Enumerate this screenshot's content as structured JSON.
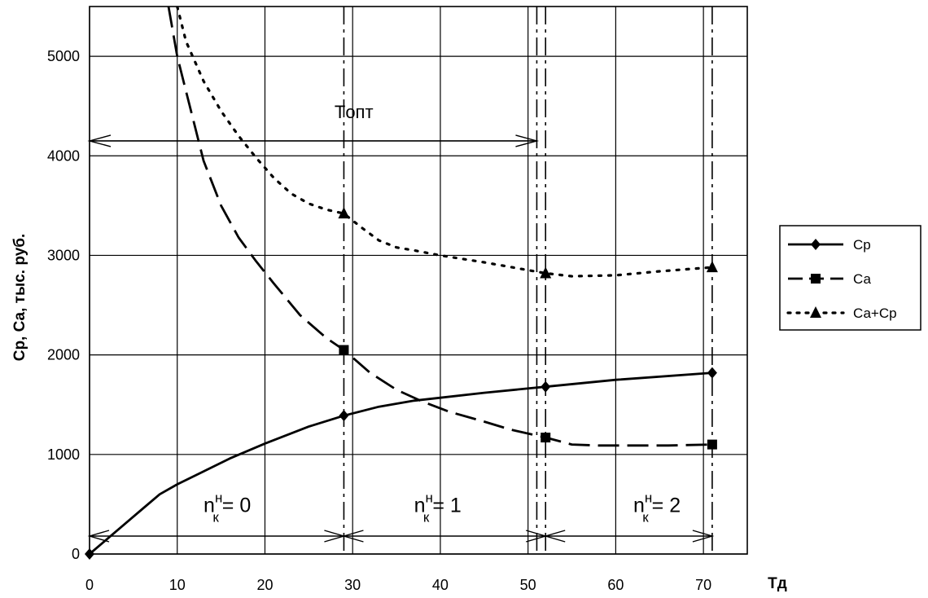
{
  "chart_data": {
    "type": "line",
    "xlabel": "Тд",
    "ylabel": "Ср, Са, тыс. руб.",
    "xlim": [
      0,
      75
    ],
    "ylim": [
      0,
      5500
    ],
    "x_ticks": [
      "0",
      "10",
      "20",
      "30",
      "40",
      "50",
      "60",
      "70"
    ],
    "y_ticks": [
      "0",
      "1000",
      "2000",
      "3000",
      "4000",
      "5000"
    ],
    "grid": true,
    "legend_position": "right",
    "series": [
      {
        "name": "Ср",
        "style": "solid",
        "marker": "diamond",
        "line_x": [
          0,
          2,
          4,
          6,
          8,
          10,
          13,
          16,
          20,
          25,
          29,
          33,
          37,
          40,
          45,
          52,
          60,
          71
        ],
        "line_y": [
          0,
          150,
          300,
          450,
          600,
          700,
          830,
          960,
          1110,
          1280,
          1390,
          1480,
          1540,
          1570,
          1620,
          1680,
          1750,
          1820
        ],
        "marker_x": [
          0,
          29,
          52,
          71
        ],
        "marker_y": [
          0,
          1390,
          1680,
          1820
        ]
      },
      {
        "name": "Са",
        "style": "dashed",
        "marker": "square",
        "line_x": [
          9,
          10,
          11,
          12,
          13,
          15,
          17,
          19,
          21,
          24,
          27,
          29,
          32,
          35,
          38,
          41,
          45,
          48,
          52,
          55,
          58,
          62,
          66,
          71
        ],
        "line_y": [
          5500,
          5000,
          4650,
          4300,
          3950,
          3500,
          3180,
          2940,
          2720,
          2400,
          2170,
          2050,
          1820,
          1650,
          1530,
          1430,
          1330,
          1250,
          1170,
          1100,
          1090,
          1090,
          1090,
          1100
        ],
        "marker_x": [
          29,
          52,
          71
        ],
        "marker_y": [
          2050,
          1170,
          1100
        ]
      },
      {
        "name": "Са+Ср",
        "style": "dotted",
        "marker": "triangle",
        "line_x": [
          10,
          11,
          13,
          15,
          17,
          19,
          21,
          23,
          25,
          27,
          29,
          31,
          33,
          35,
          37,
          40,
          45,
          52,
          55,
          60,
          65,
          71
        ],
        "line_y": [
          5500,
          5150,
          4750,
          4450,
          4200,
          3980,
          3780,
          3620,
          3520,
          3460,
          3420,
          3280,
          3150,
          3080,
          3050,
          3000,
          2930,
          2820,
          2790,
          2800,
          2840,
          2880
        ],
        "marker_x": [
          29,
          52,
          71
        ],
        "marker_y": [
          3420,
          2820,
          2880
        ]
      }
    ],
    "annotations": {
      "t_opt_label": "Tопт",
      "t_opt_range": [
        0,
        51
      ],
      "t_opt_y": 4150,
      "vertical_lines": [
        29,
        51,
        52,
        71
      ],
      "regions": [
        {
          "prefix": "n",
          "sup": "н",
          "sub": "к",
          "value": "= 0",
          "x": 13
        },
        {
          "prefix": "n",
          "sup": "н",
          "sub": "к",
          "value": "= 1",
          "x": 37
        },
        {
          "prefix": "n",
          "sup": "н",
          "sub": "к",
          "value": "= 2",
          "x": 62
        }
      ],
      "bottom_arrow_y": 180,
      "bottom_arrow_points": [
        0,
        29,
        52,
        71
      ]
    }
  }
}
